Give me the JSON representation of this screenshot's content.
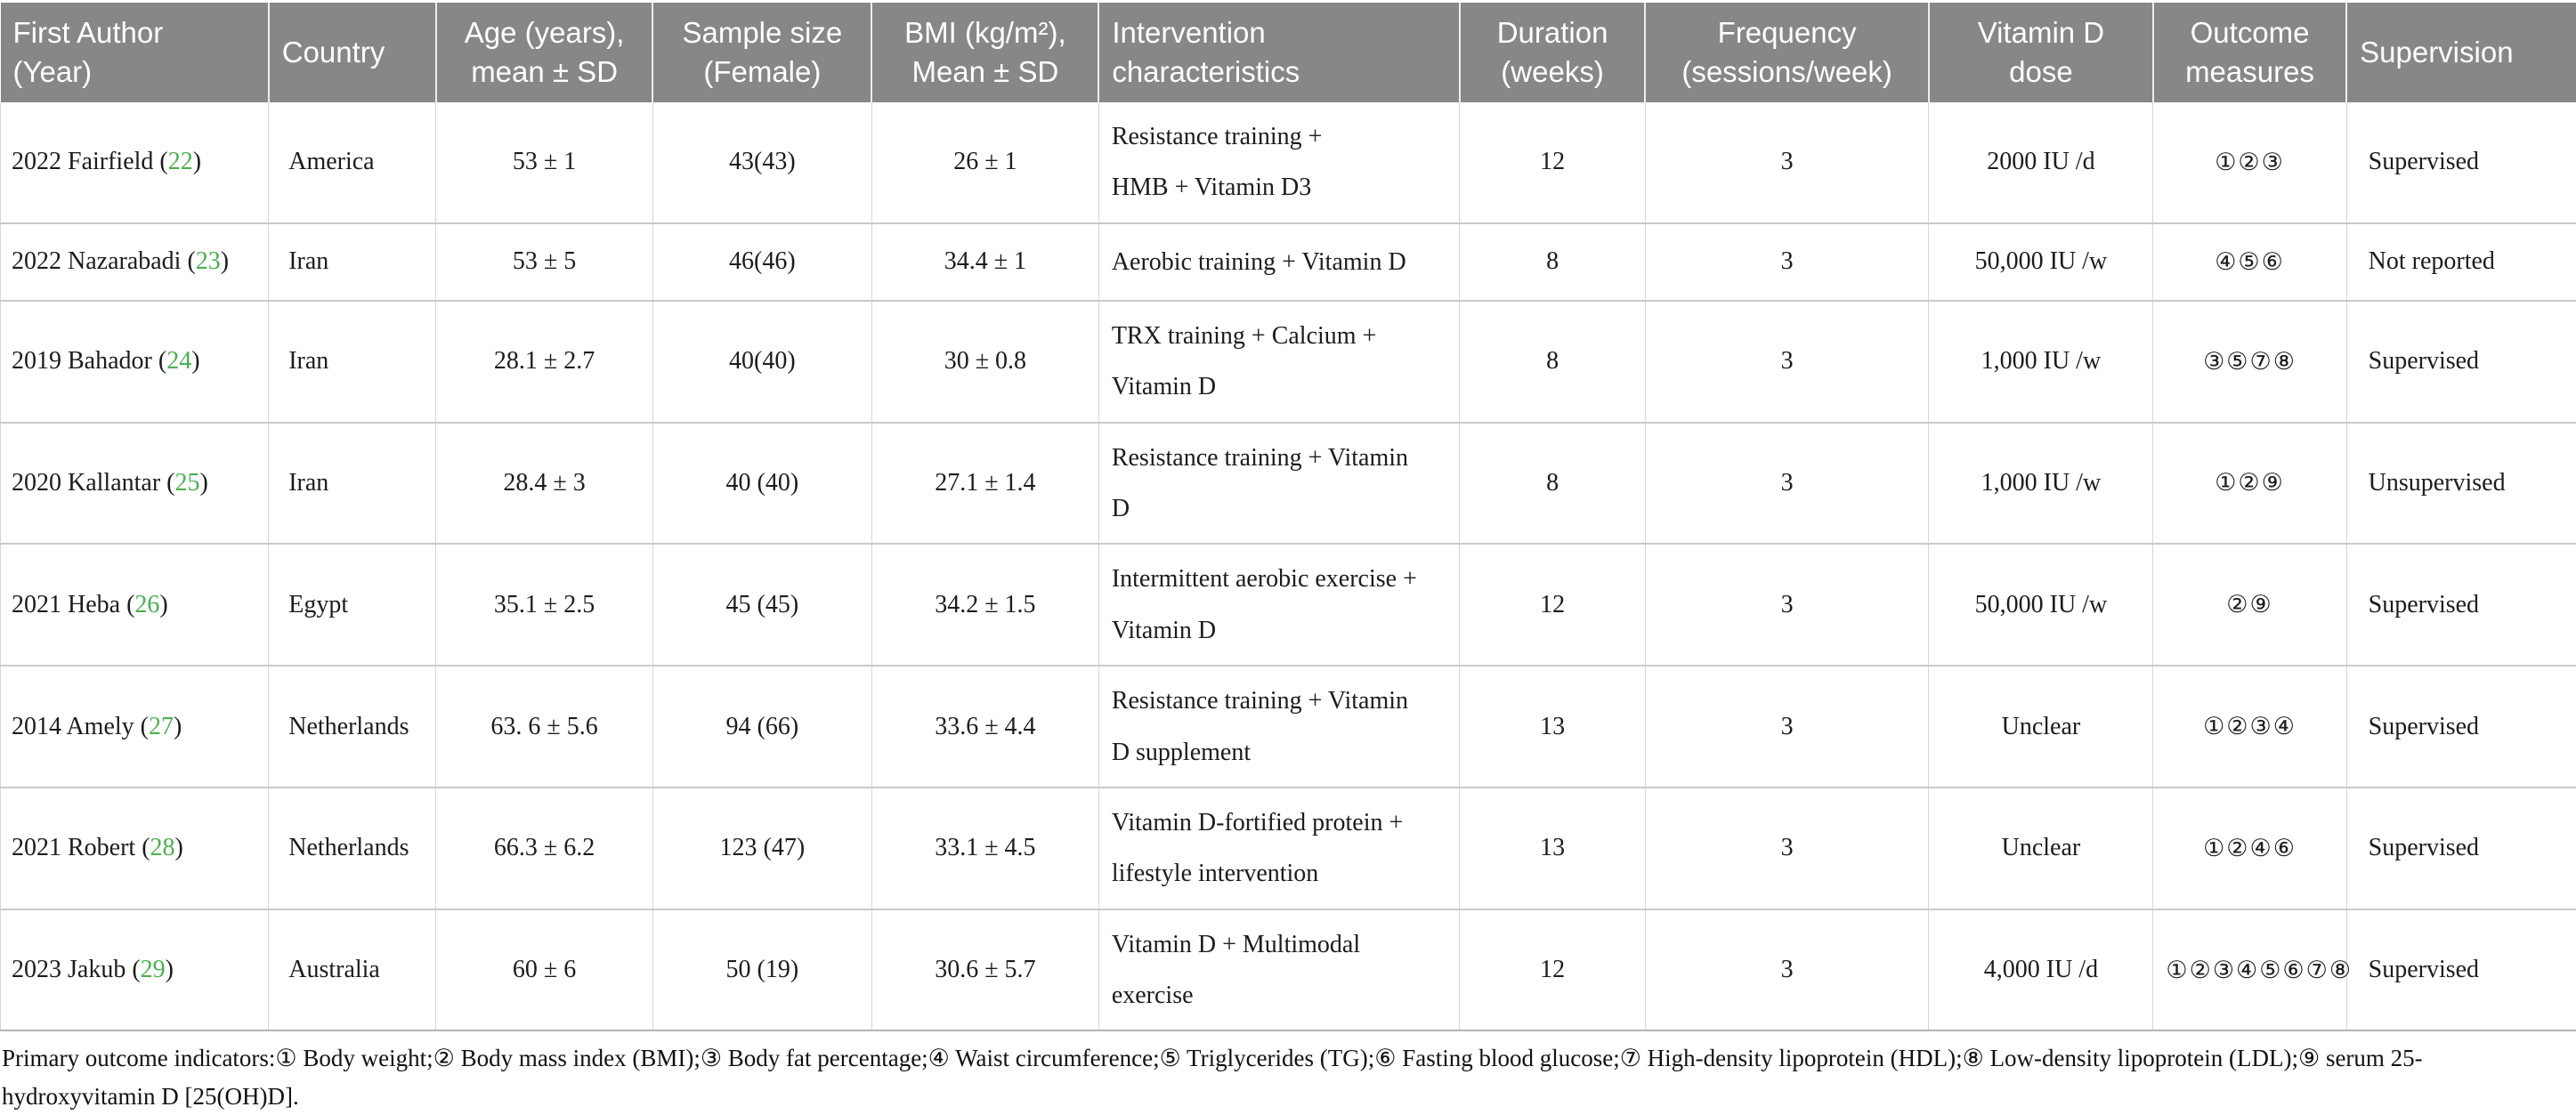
{
  "table": {
    "columns": [
      {
        "key": "author",
        "label": "First Author\n(Year)"
      },
      {
        "key": "country",
        "label": "Country"
      },
      {
        "key": "age",
        "label": "Age (years),\nmean ± SD"
      },
      {
        "key": "sample",
        "label": "Sample size\n(Female)"
      },
      {
        "key": "bmi",
        "label": "BMI (kg/m²),\nMean ± SD"
      },
      {
        "key": "intervention",
        "label": "Intervention\ncharacteristics"
      },
      {
        "key": "duration",
        "label": "Duration\n(weeks)"
      },
      {
        "key": "frequency",
        "label": "Frequency\n(sessions/week)"
      },
      {
        "key": "dose",
        "label": "Vitamin D\ndose"
      },
      {
        "key": "outcomes",
        "label": "Outcome\nmeasures"
      },
      {
        "key": "supervision",
        "label": "Supervision"
      }
    ],
    "rows": [
      {
        "author": "2022 Fairfield",
        "ref": "22",
        "country": "America",
        "age": "53 ± 1",
        "sample": "43(43)",
        "bmi": "26 ± 1",
        "intervention": "Resistance training +\nHMB + Vitamin D3",
        "duration": "12",
        "frequency": "3",
        "dose": "2000 IU /d",
        "outcomes": "①②③",
        "supervision": "Supervised"
      },
      {
        "author": "2022 Nazarabadi",
        "ref": "23",
        "country": "Iran",
        "age": "53 ± 5",
        "sample": "46(46)",
        "bmi": "34.4 ± 1",
        "intervention": "Aerobic training + Vitamin D",
        "duration": "8",
        "frequency": "3",
        "dose": "50,000 IU /w",
        "outcomes": "④⑤⑥",
        "supervision": "Not reported"
      },
      {
        "author": "2019 Bahador",
        "ref": "24",
        "country": "Iran",
        "age": "28.1 ± 2.7",
        "sample": "40(40)",
        "bmi": "30 ± 0.8",
        "intervention": "TRX training + Calcium +\nVitamin D",
        "duration": "8",
        "frequency": "3",
        "dose": "1,000 IU /w",
        "outcomes": "③⑤⑦⑧",
        "supervision": "Supervised"
      },
      {
        "author": "2020 Kallantar",
        "ref": "25",
        "country": "Iran",
        "age": "28.4 ± 3",
        "sample": "40 (40)",
        "bmi": "27.1 ± 1.4",
        "intervention": "Resistance training + Vitamin\nD",
        "duration": "8",
        "frequency": "3",
        "dose": "1,000 IU /w",
        "outcomes": "①②⑨",
        "supervision": "Unsupervised"
      },
      {
        "author": "2021 Heba",
        "ref": "26",
        "country": "Egypt",
        "age": "35.1 ± 2.5",
        "sample": "45 (45)",
        "bmi": "34.2 ± 1.5",
        "intervention": "Intermittent aerobic exercise +\nVitamin D",
        "duration": "12",
        "frequency": "3",
        "dose": "50,000 IU /w",
        "outcomes": "②⑨",
        "supervision": "Supervised"
      },
      {
        "author": "2014 Amely",
        "ref": "27",
        "country": "Netherlands",
        "age": "63. 6 ± 5.6",
        "sample": "94 (66)",
        "bmi": "33.6 ± 4.4",
        "intervention": "Resistance training + Vitamin\nD supplement",
        "duration": "13",
        "frequency": "3",
        "dose": "Unclear",
        "outcomes": "①②③④",
        "supervision": "Supervised"
      },
      {
        "author": "2021 Robert",
        "ref": "28",
        "country": "Netherlands",
        "age": "66.3 ± 6.2",
        "sample": "123 (47)",
        "bmi": "33.1 ± 4.5",
        "intervention": "Vitamin D-fortified protein +\nlifestyle intervention",
        "duration": "13",
        "frequency": "3",
        "dose": "Unclear",
        "outcomes": "①②④⑥",
        "supervision": "Supervised"
      },
      {
        "author": "2023 Jakub",
        "ref": "29",
        "country": "Australia",
        "age": "60 ± 6",
        "sample": "50 (19)",
        "bmi": "30.6 ± 5.7",
        "intervention": "Vitamin D + Multimodal\nexercise",
        "duration": "12",
        "frequency": "3",
        "dose": "4,000 IU /d",
        "outcomes": "①②③④⑤⑥⑦⑧",
        "supervision": "Supervised"
      }
    ],
    "footnote": "Primary outcome indicators:① Body weight;② Body mass index (BMI);③ Body fat percentage;④ Waist circumference;⑤ Triglycerides (TG);⑥ Fasting blood glucose;⑦ High-density lipoprotein (HDL);⑧ Low-density lipoprotein (LDL);⑨ serum 25-hydroxyvitamin D [25(OH)D]."
  },
  "colors": {
    "header_bg": "#878787",
    "header_text": "#ffffff",
    "citation_green": "#4caf50"
  }
}
